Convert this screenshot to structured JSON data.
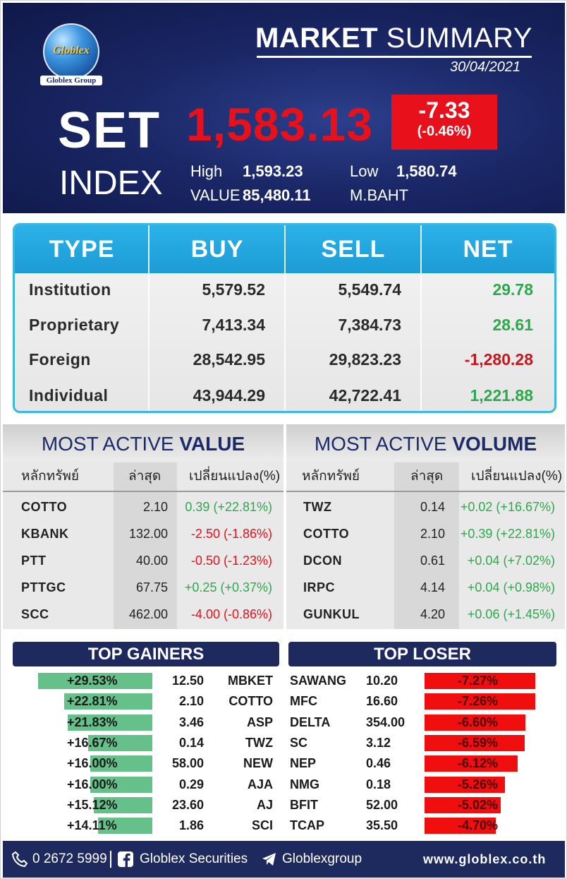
{
  "header": {
    "logo_text": "Globlex",
    "logo_sub": "Globlex Group",
    "title_bold": "MARKET",
    "title_rest": " SUMMARY",
    "date": "30/04/2021",
    "set_label": "SET",
    "index_label": "INDEX",
    "index_value": "1,583.13",
    "change_points": "-7.33",
    "change_pct": "(-0.46%)",
    "high_label": "High",
    "high_value": "1,593.23",
    "low_label": "Low",
    "low_value": "1,580.74",
    "value_label": "VALUE",
    "value_amount": "85,480.11",
    "value_unit": "M.BAHT"
  },
  "investors": {
    "headers": [
      "TYPE",
      "BUY",
      "SELL",
      "NET"
    ],
    "rows": [
      {
        "type": "Institution",
        "buy": "5,579.52",
        "sell": "5,549.74",
        "net": "29.78"
      },
      {
        "type": "Proprietary",
        "buy": "7,413.34",
        "sell": "7,384.73",
        "net": "28.61"
      },
      {
        "type": "Foreign",
        "buy": "28,542.95",
        "sell": "29,823.23",
        "net": "-1,280.28"
      },
      {
        "type": "Individual",
        "buy": "43,944.29",
        "sell": "42,722.41",
        "net": "1,221.88"
      }
    ]
  },
  "most_active_value": {
    "title_light": "MOST ACTIVE ",
    "title_bold": "VALUE",
    "headers": [
      "หลักทรัพย์",
      "ล่าสุด",
      "เปลี่ยนแปลง(%)"
    ],
    "rows": [
      {
        "symbol": "COTTO",
        "last": "2.10",
        "change": "0.39 (+22.81%)",
        "dir": "up"
      },
      {
        "symbol": "KBANK",
        "last": "132.00",
        "change": "-2.50 (-1.86%)",
        "dir": "down"
      },
      {
        "symbol": "PTT",
        "last": "40.00",
        "change": "-0.50 (-1.23%)",
        "dir": "down"
      },
      {
        "symbol": "PTTGC",
        "last": "67.75",
        "change": "+0.25 (+0.37%)",
        "dir": "up"
      },
      {
        "symbol": "SCC",
        "last": "462.00",
        "change": "-4.00 (-0.86%)",
        "dir": "down"
      }
    ]
  },
  "most_active_volume": {
    "title_light": "MOST ACTIVE ",
    "title_bold": "VOLUME",
    "headers": [
      "หลักทรัพย์",
      "ล่าสุด",
      "เปลี่ยนแปลง(%)"
    ],
    "rows": [
      {
        "symbol": "TWZ",
        "last": "0.14",
        "change": "+0.02 (+16.67%)",
        "dir": "up"
      },
      {
        "symbol": "COTTO",
        "last": "2.10",
        "change": "+0.39 (+22.81%)",
        "dir": "up"
      },
      {
        "symbol": "DCON",
        "last": "0.61",
        "change": "+0.04 (+7.02%)",
        "dir": "up"
      },
      {
        "symbol": "IRPC",
        "last": "4.14",
        "change": "+0.04 (+0.98%)",
        "dir": "up"
      },
      {
        "symbol": "GUNKUL",
        "last": "4.20",
        "change": "+0.06 (+1.45%)",
        "dir": "up"
      }
    ]
  },
  "top_gainers": {
    "title": "TOP GAINERS",
    "rows": [
      {
        "pct": "+29.53%",
        "pct_value": 29.53,
        "price": "12.50",
        "symbol": "MBKET"
      },
      {
        "pct": "+22.81%",
        "pct_value": 22.81,
        "price": "2.10",
        "symbol": "COTTO"
      },
      {
        "pct": "+21.83%",
        "pct_value": 21.83,
        "price": "3.46",
        "symbol": "ASP"
      },
      {
        "pct": "+16.67%",
        "pct_value": 16.67,
        "price": "0.14",
        "symbol": "TWZ"
      },
      {
        "pct": "+16.00%",
        "pct_value": 16.0,
        "price": "58.00",
        "symbol": "NEW"
      },
      {
        "pct": "+16.00%",
        "pct_value": 16.0,
        "price": "0.29",
        "symbol": "AJA"
      },
      {
        "pct": "+15.12%",
        "pct_value": 15.12,
        "price": "23.60",
        "symbol": "AJ"
      },
      {
        "pct": "+14.11%",
        "pct_value": 14.11,
        "price": "1.86",
        "symbol": "SCI"
      }
    ]
  },
  "top_loser": {
    "title": "TOP LOSER",
    "rows": [
      {
        "symbol": "SAWANG",
        "price": "10.20",
        "pct": "-7.27%",
        "pct_value": 7.27
      },
      {
        "symbol": "MFC",
        "price": "16.60",
        "pct": "-7.26%",
        "pct_value": 7.26
      },
      {
        "symbol": "DELTA",
        "price": "354.00",
        "pct": "-6.60%",
        "pct_value": 6.6
      },
      {
        "symbol": "SC",
        "price": "3.12",
        "pct": "-6.59%",
        "pct_value": 6.59
      },
      {
        "symbol": "NEP",
        "price": "0.46",
        "pct": "-6.12%",
        "pct_value": 6.12
      },
      {
        "symbol": "NMG",
        "price": "0.18",
        "pct": "-5.26%",
        "pct_value": 5.26
      },
      {
        "symbol": "BFIT",
        "price": "52.00",
        "pct": "-5.02%",
        "pct_value": 5.02
      },
      {
        "symbol": "TCAP",
        "price": "35.50",
        "pct": "-4.70%",
        "pct_value": 4.7
      }
    ]
  },
  "footer": {
    "phone": "0 2672 5999",
    "facebook": "Globlex Securities",
    "telegram": "Globlexgroup",
    "website": "www.globlex.co.th"
  },
  "colors": {
    "navy": "#1e2a5e",
    "red": "#e8101b",
    "green": "#2ea84c",
    "cyan": "#2ab2e8",
    "gainer_bar": "#66c08a",
    "loser_bar": "#f00e0e"
  }
}
